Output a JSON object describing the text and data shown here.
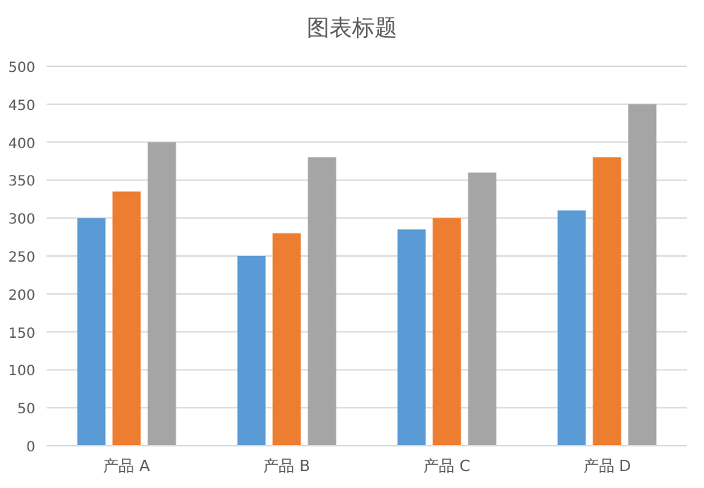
{
  "chart_data": {
    "type": "bar",
    "title": "图表标题",
    "categories": [
      "产品 A",
      "产品 B",
      "产品 C",
      "产品 D"
    ],
    "series": [
      {
        "color": "#5b9bd5",
        "values": [
          300,
          250,
          285,
          310
        ]
      },
      {
        "color": "#ed7d31",
        "values": [
          335,
          280,
          300,
          380
        ]
      },
      {
        "color": "#a5a5a5",
        "values": [
          400,
          380,
          360,
          450
        ]
      }
    ],
    "ylim": [
      0,
      500
    ],
    "yticks": [
      0,
      50,
      100,
      150,
      200,
      250,
      300,
      350,
      400,
      450,
      500
    ],
    "grid": "y"
  }
}
